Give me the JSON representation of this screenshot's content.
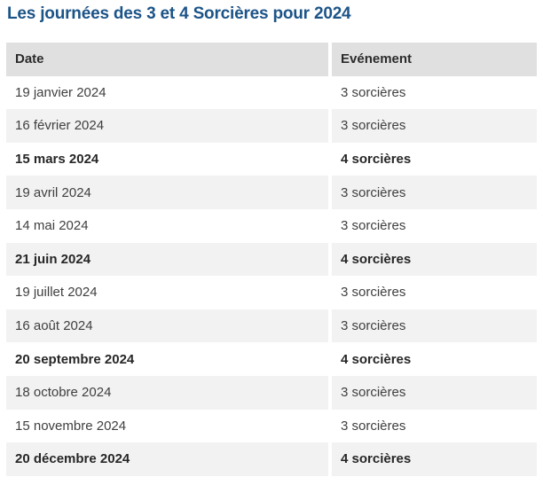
{
  "page": {
    "title": "Les journées des 3 et 4 Sorcières pour 2024"
  },
  "colors": {
    "title_blue": "#1c5488",
    "header_bg": "#e0e0e0",
    "alt_row_bg": "#f2f2f2",
    "text": "#3f3f3f",
    "bold_text": "#262626"
  },
  "table": {
    "columns": [
      "Date",
      "Evénement"
    ],
    "rows": [
      {
        "date": "19 janvier 2024",
        "event": "3 sorcières",
        "bold": false
      },
      {
        "date": "16 février 2024",
        "event": "3 sorcières",
        "bold": false
      },
      {
        "date": "15 mars 2024",
        "event": "4 sorcières",
        "bold": true
      },
      {
        "date": "19 avril 2024",
        "event": "3 sorcières",
        "bold": false
      },
      {
        "date": "14 mai 2024",
        "event": "3 sorcières",
        "bold": false
      },
      {
        "date": "21 juin 2024",
        "event": "4 sorcières",
        "bold": true
      },
      {
        "date": "19 juillet 2024",
        "event": "3 sorcières",
        "bold": false
      },
      {
        "date": "16 août 2024",
        "event": "3 sorcières",
        "bold": false
      },
      {
        "date": "20 septembre 2024",
        "event": "4 sorcières",
        "bold": true
      },
      {
        "date": "18 octobre 2024",
        "event": "3 sorcières",
        "bold": false
      },
      {
        "date": "15 novembre 2024",
        "event": "3 sorcières",
        "bold": false
      },
      {
        "date": "20 décembre 2024",
        "event": "4 sorcières",
        "bold": true
      }
    ]
  }
}
